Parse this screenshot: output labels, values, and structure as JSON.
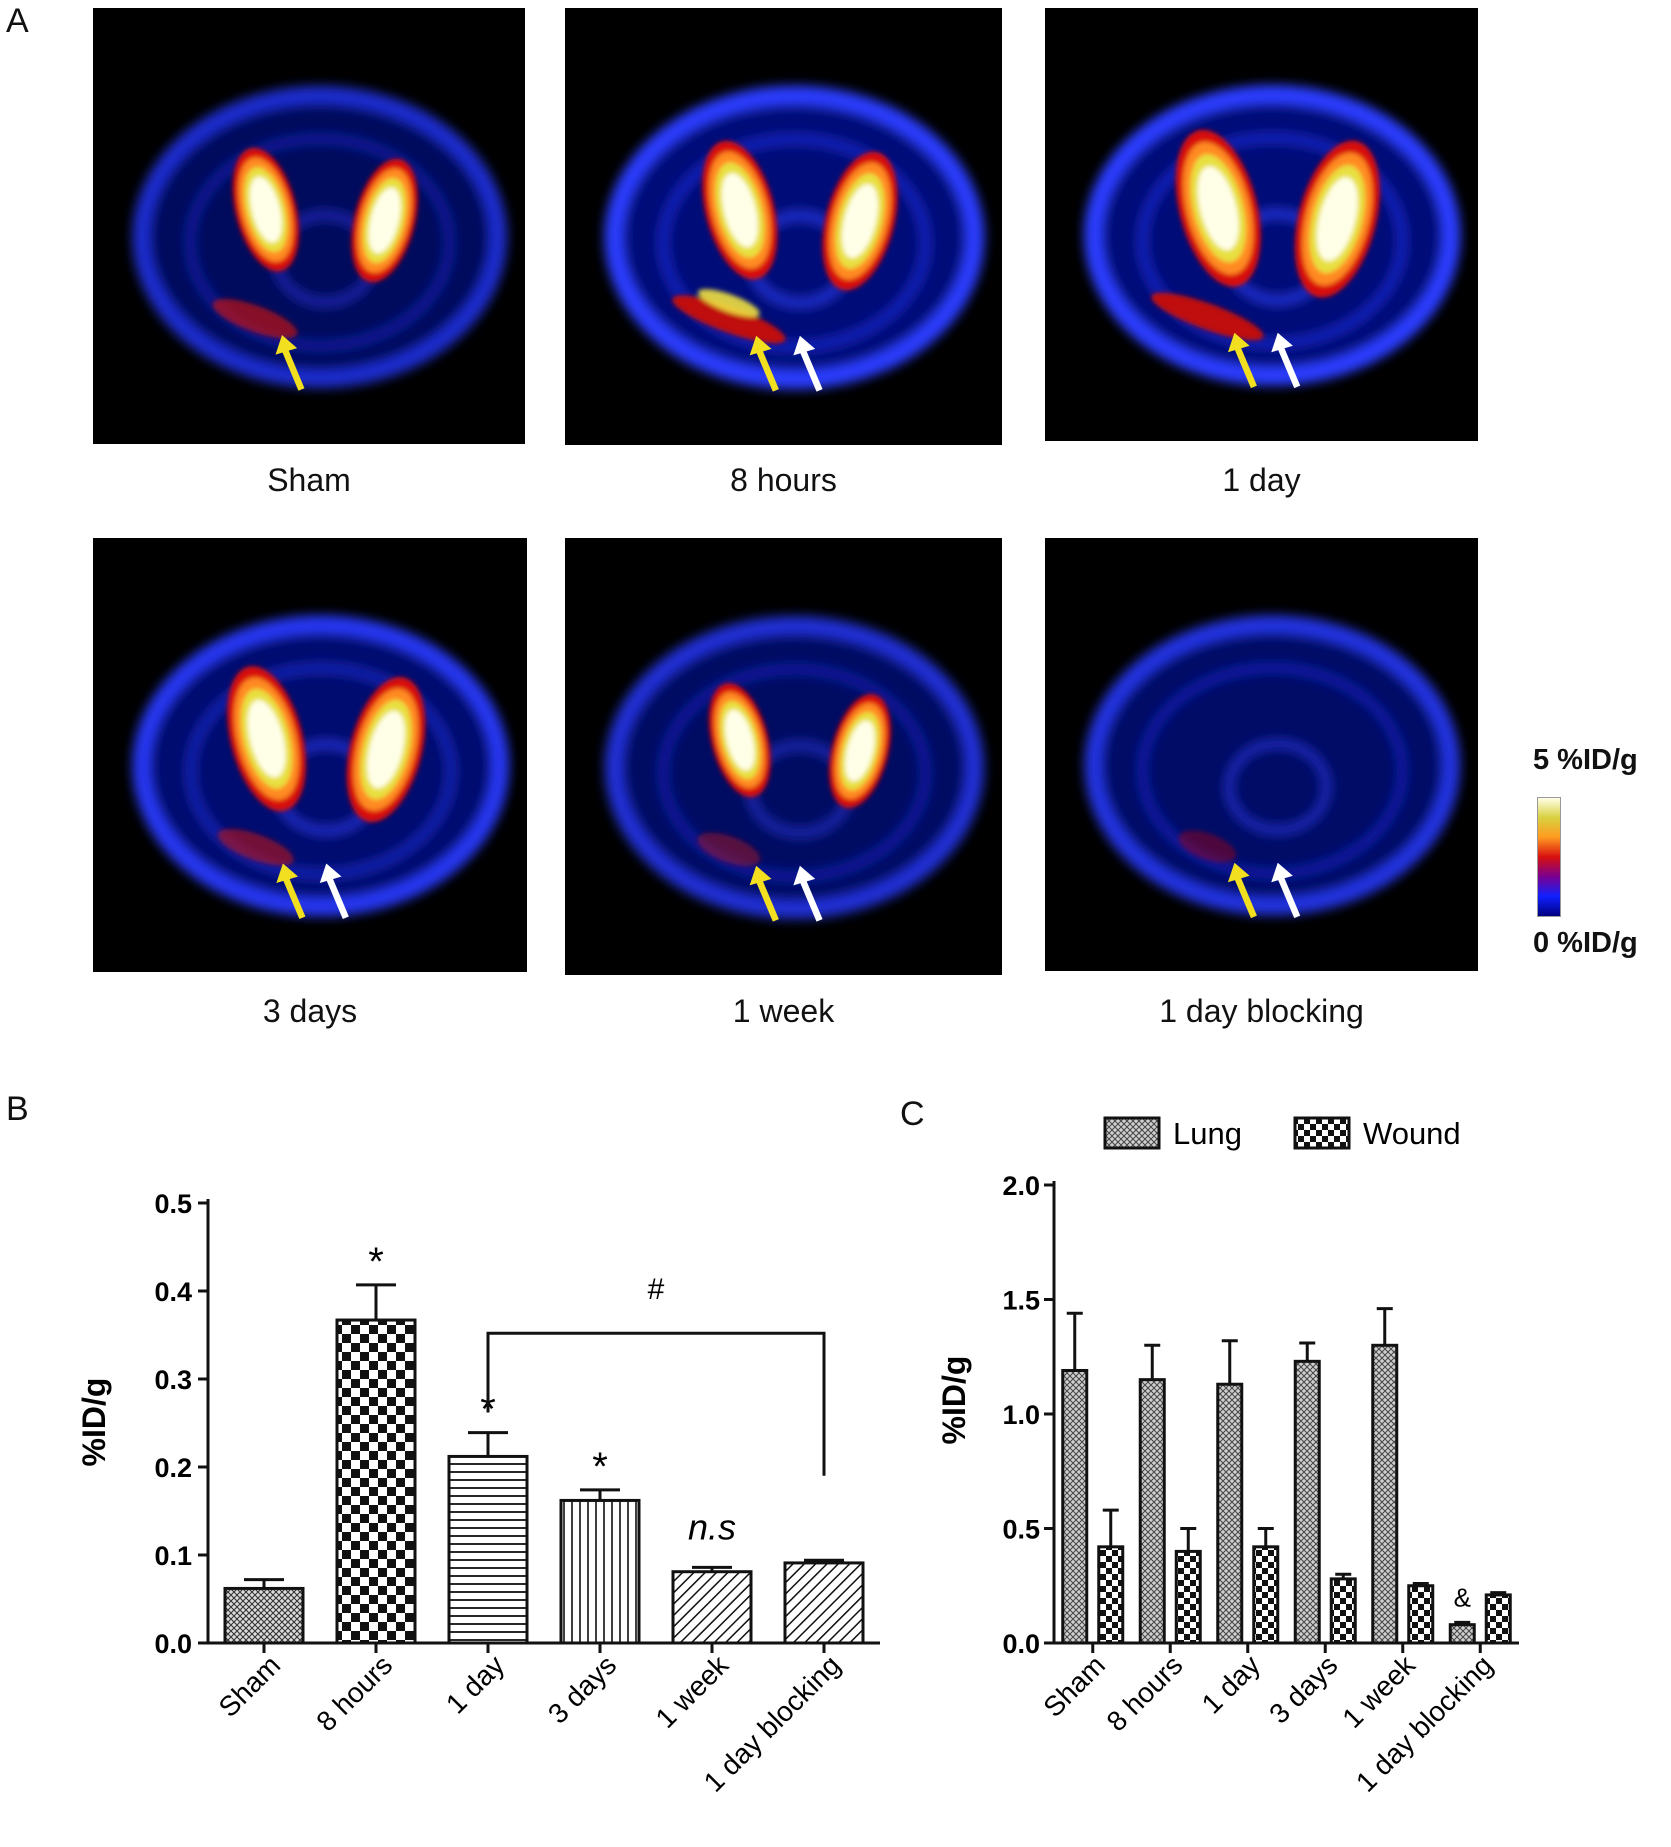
{
  "panels": {
    "a": "A",
    "b": "B",
    "c": "C"
  },
  "colors": {
    "scale_stops": [
      "#000080",
      "#1020ff",
      "#7a0090",
      "#d81010",
      "#ff9a20",
      "#d8d040",
      "#ffffe8"
    ],
    "arrow_yellow": "#f2e020",
    "arrow_white": "#ffffff"
  },
  "pet_images": [
    {
      "caption": "Sham",
      "arrows": [
        "yellow"
      ]
    },
    {
      "caption": "8 hours",
      "arrows": [
        "yellow",
        "white"
      ]
    },
    {
      "caption": "1 day",
      "arrows": [
        "yellow",
        "white"
      ]
    },
    {
      "caption": "3 days",
      "arrows": [
        "yellow",
        "white"
      ]
    },
    {
      "caption": "1 week",
      "arrows": [
        "yellow",
        "white"
      ]
    },
    {
      "caption": "1 day blocking",
      "arrows": [
        "yellow",
        "white"
      ]
    }
  ],
  "colorscale": {
    "max_label": "5 %ID/g",
    "min_label": "0 %ID/g"
  },
  "chart_data": [
    {
      "panel": "B",
      "type": "bar",
      "ylabel": "%ID/g",
      "ylim": [
        0,
        0.5
      ],
      "yticks": [
        "0.0",
        "0.1",
        "0.2",
        "0.3",
        "0.4",
        "0.5"
      ],
      "categories": [
        "Sham",
        "8 hours",
        "1 day",
        "3 days",
        "1 week",
        "1 day blocking"
      ],
      "values": [
        0.062,
        0.367,
        0.212,
        0.162,
        0.081,
        0.091
      ],
      "errors": [
        0.01,
        0.04,
        0.027,
        0.012,
        0.005,
        0.003
      ],
      "patterns": [
        "crosshatch",
        "checker",
        "hlines",
        "vlines",
        "diag",
        "diag"
      ],
      "annotations": [
        "",
        "*",
        "*",
        "*",
        "n.s",
        ""
      ],
      "bracket": {
        "from": "1 day",
        "to": "1 day blocking",
        "label": "#"
      }
    },
    {
      "panel": "C",
      "type": "bar",
      "ylabel": "%ID/g",
      "ylim": [
        0,
        2.0
      ],
      "yticks": [
        "0.0",
        "0.5",
        "1.0",
        "1.5",
        "2.0"
      ],
      "categories": [
        "Sham",
        "8 hours",
        "1 day",
        "3 days",
        "1 week",
        "1 day blocking"
      ],
      "series": [
        {
          "name": "Lung",
          "values": [
            1.19,
            1.15,
            1.13,
            1.23,
            1.3,
            0.08
          ],
          "errors": [
            0.25,
            0.15,
            0.19,
            0.08,
            0.16,
            0.01
          ]
        },
        {
          "name": "Wound",
          "values": [
            0.42,
            0.4,
            0.42,
            0.28,
            0.25,
            0.21
          ],
          "errors": [
            0.16,
            0.1,
            0.08,
            0.02,
            0.01,
            0.01
          ]
        }
      ],
      "annotations": [
        "",
        "",
        "",
        "",
        "",
        "&"
      ],
      "legend": "top"
    }
  ]
}
